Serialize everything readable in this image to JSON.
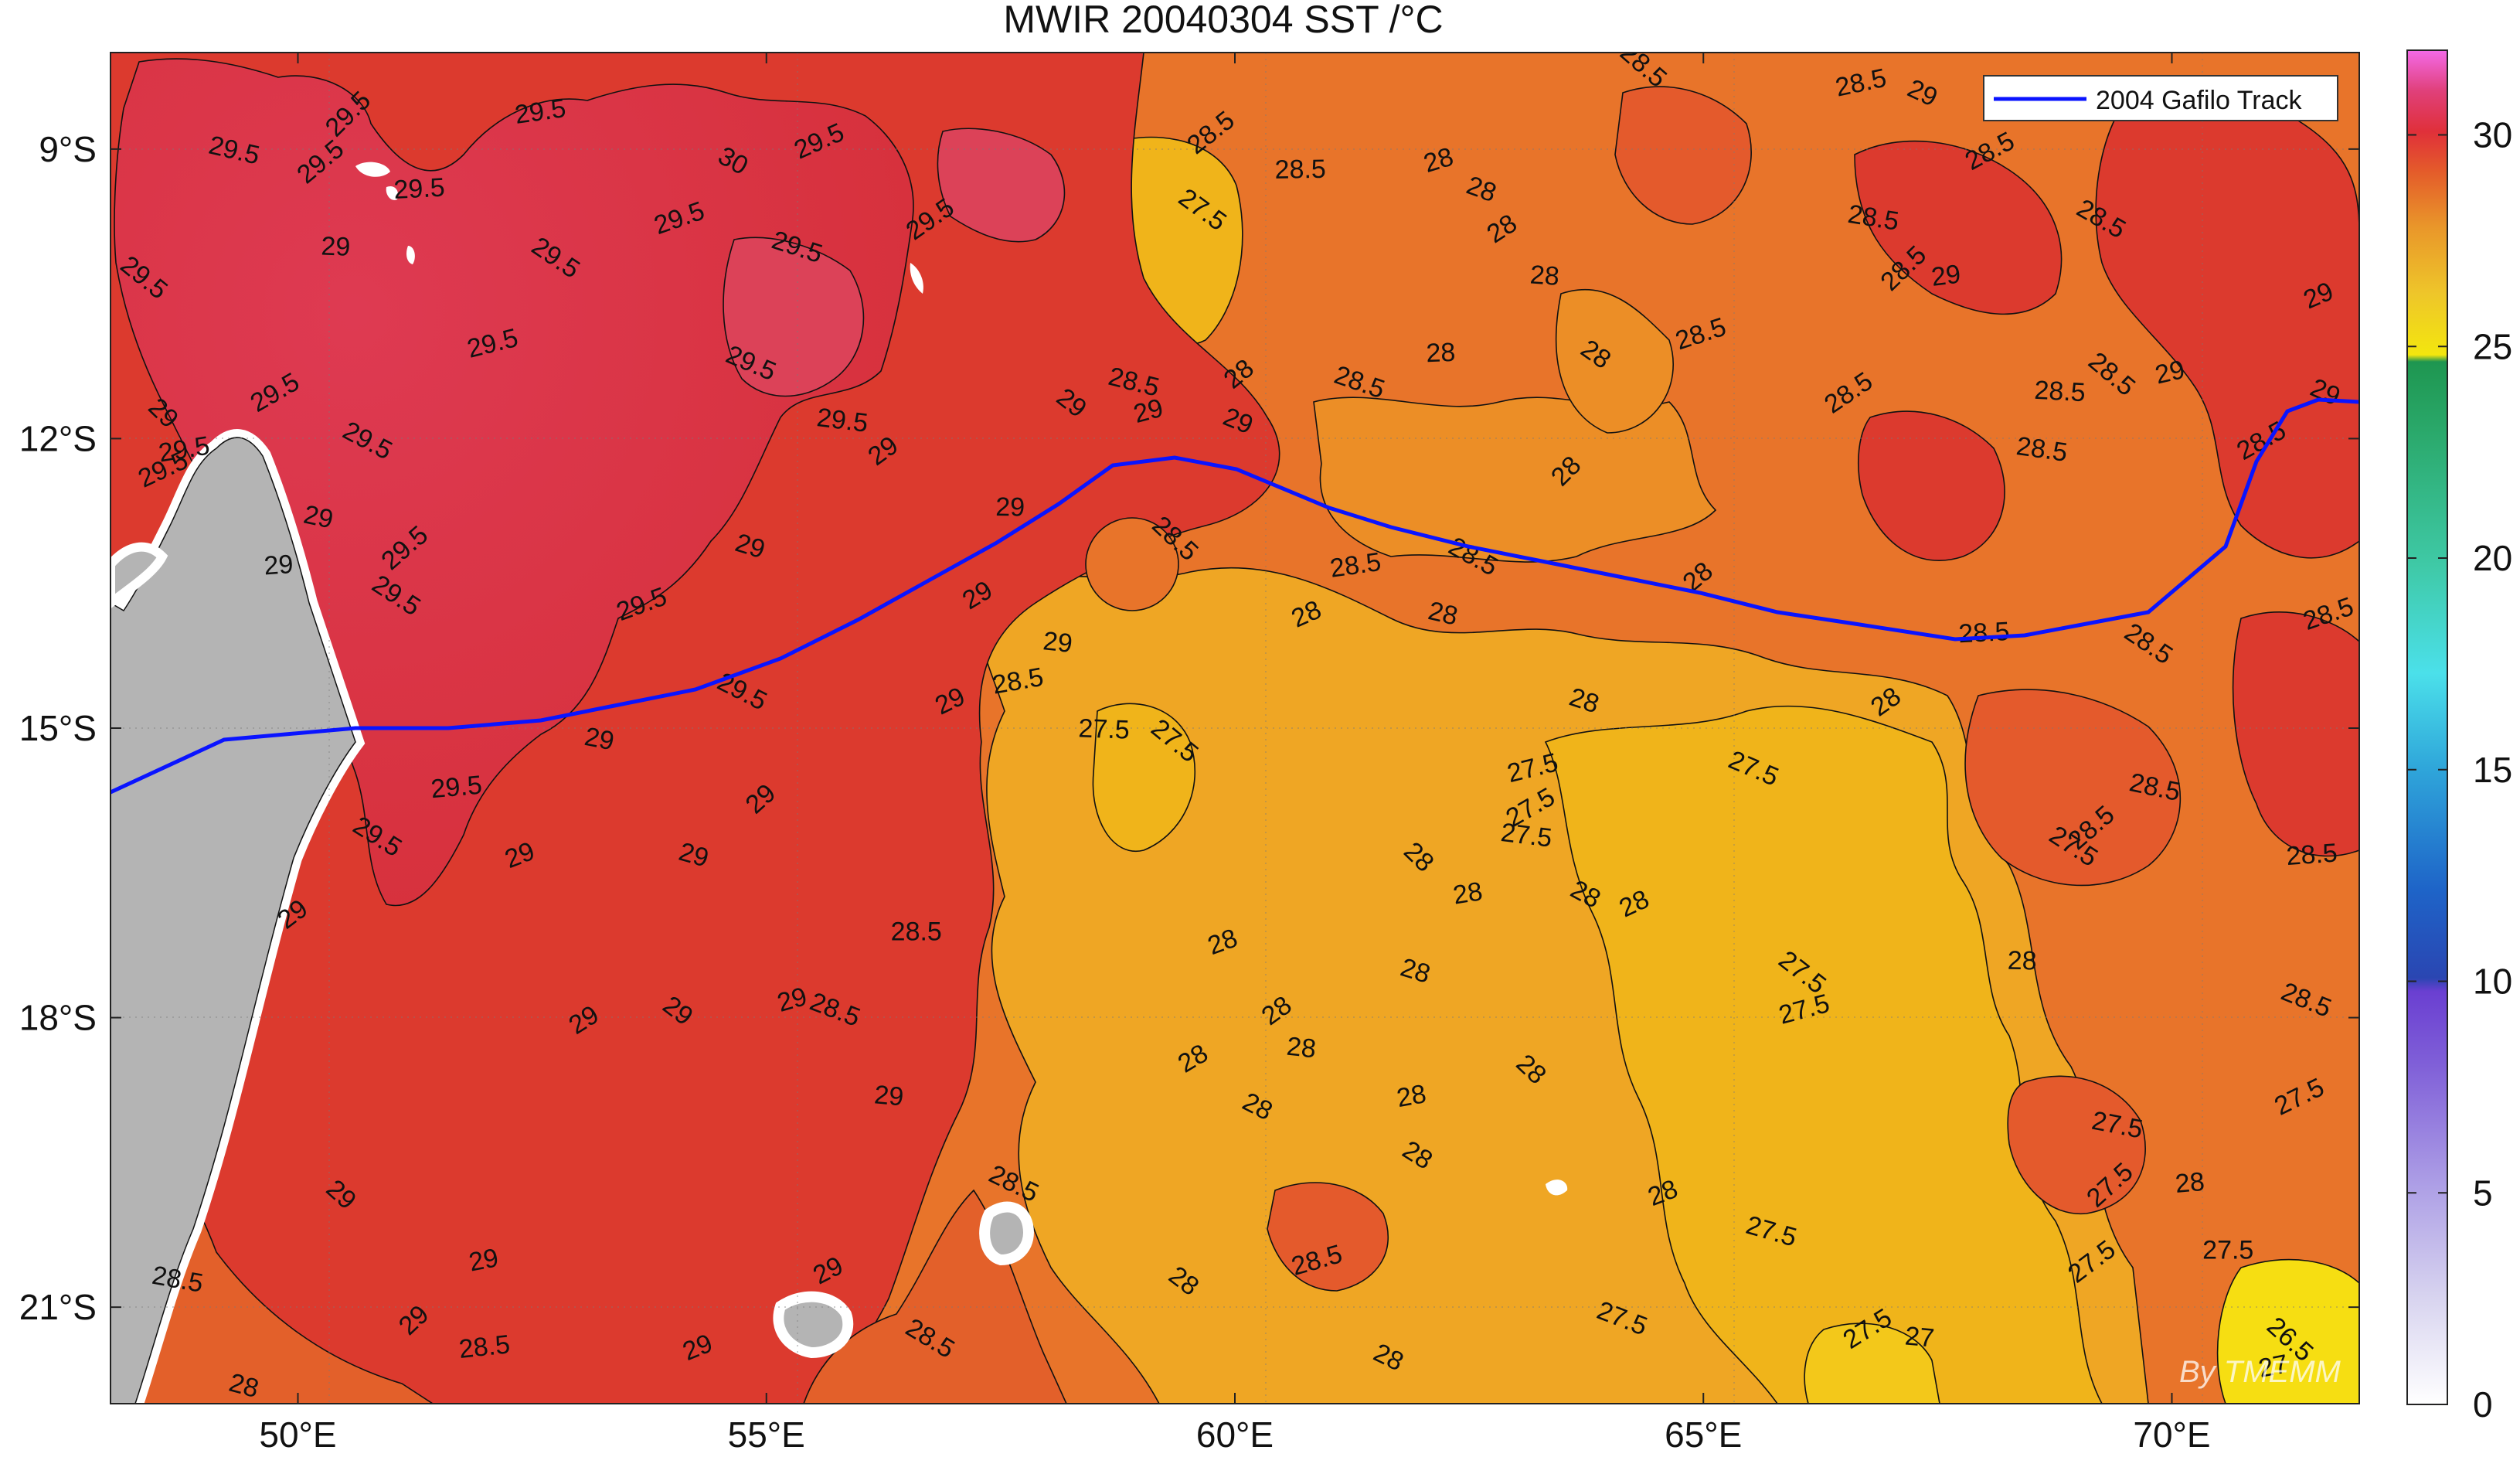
{
  "title": "MWIR 20040304 SST /°C",
  "x_ticks": [
    {
      "lon": 50,
      "label": "50°E"
    },
    {
      "lon": 55,
      "label": "55°E"
    },
    {
      "lon": 60,
      "label": "60°E"
    },
    {
      "lon": 65,
      "label": "65°E"
    },
    {
      "lon": 70,
      "label": "70°E"
    }
  ],
  "y_ticks": [
    {
      "lat": -9,
      "label": "9°S"
    },
    {
      "lat": -12,
      "label": "12°S"
    },
    {
      "lat": -15,
      "label": "15°S"
    },
    {
      "lat": -18,
      "label": "18°S"
    },
    {
      "lat": -21,
      "label": "21°S"
    }
  ],
  "lon_range": [
    48,
    72
  ],
  "lat_range": [
    -22,
    -8
  ],
  "legend": {
    "label": "2004 Gafilo Track",
    "color": "#0a14ff"
  },
  "colorbar": {
    "range": [
      0,
      32
    ],
    "ticks": [
      {
        "value": 0,
        "label": "0"
      },
      {
        "value": 5,
        "label": "5"
      },
      {
        "value": 10,
        "label": "10"
      },
      {
        "value": 15,
        "label": "15"
      },
      {
        "value": 20,
        "label": "20"
      },
      {
        "value": 25,
        "label": "25"
      },
      {
        "value": 30,
        "label": "30"
      }
    ]
  },
  "watermark": "By TMEMM",
  "contour_labels": [
    {
      "text": "29.5",
      "lon": 50.6,
      "lat": -8.7
    },
    {
      "text": "29.5",
      "lon": 52.6,
      "lat": -8.7
    },
    {
      "text": "30",
      "lon": 54.6,
      "lat": -9.2
    },
    {
      "text": "29.5",
      "lon": 55.6,
      "lat": -9.0
    },
    {
      "text": "29.5",
      "lon": 49.3,
      "lat": -9.1
    },
    {
      "text": "29.5",
      "lon": 50.3,
      "lat": -9.2
    },
    {
      "text": "29.5",
      "lon": 51.3,
      "lat": -9.5
    },
    {
      "text": "29.5",
      "lon": 52.7,
      "lat": -10.2
    },
    {
      "text": "29.5",
      "lon": 54.1,
      "lat": -9.8
    },
    {
      "text": "29.5",
      "lon": 55.3,
      "lat": -10.1
    },
    {
      "text": "29.5",
      "lon": 56.8,
      "lat": -9.8
    },
    {
      "text": "29",
      "lon": 50.4,
      "lat": -10.1
    },
    {
      "text": "29.5",
      "lon": 48.3,
      "lat": -10.4
    },
    {
      "text": "29.5",
      "lon": 52.1,
      "lat": -11.1
    },
    {
      "text": "29.5",
      "lon": 54.8,
      "lat": -11.3
    },
    {
      "text": "29.5",
      "lon": 49.8,
      "lat": -11.6
    },
    {
      "text": "29.5",
      "lon": 55.8,
      "lat": -11.9
    },
    {
      "text": "29",
      "lon": 48.5,
      "lat": -11.8
    },
    {
      "text": "29.5",
      "lon": 48.8,
      "lat": -12.2
    },
    {
      "text": "29.5",
      "lon": 50.7,
      "lat": -12.1
    },
    {
      "text": "29.5",
      "lon": 48.6,
      "lat": -12.4
    },
    {
      "text": "29",
      "lon": 50.2,
      "lat": -12.9
    },
    {
      "text": "29.5",
      "lon": 51.2,
      "lat": -13.2
    },
    {
      "text": "29",
      "lon": 49.8,
      "lat": -13.4
    },
    {
      "text": "29.5",
      "lon": 51.0,
      "lat": -13.7
    },
    {
      "text": "29.5",
      "lon": 53.7,
      "lat": -13.8
    },
    {
      "text": "29",
      "lon": 54.8,
      "lat": -13.2
    },
    {
      "text": "29",
      "lon": 56.3,
      "lat": -12.2
    },
    {
      "text": "29",
      "lon": 57.6,
      "lat": -12.8
    },
    {
      "text": "29",
      "lon": 58.2,
      "lat": -11.7
    },
    {
      "text": "29",
      "lon": 59.1,
      "lat": -11.8
    },
    {
      "text": "29",
      "lon": 60.0,
      "lat": -11.9
    },
    {
      "text": "29",
      "lon": 57.3,
      "lat": -13.7
    },
    {
      "text": "29",
      "lon": 58.1,
      "lat": -14.2
    },
    {
      "text": "28.5",
      "lon": 59.3,
      "lat": -13.1
    },
    {
      "text": "28.5",
      "lon": 57.7,
      "lat": -14.6
    },
    {
      "text": "29.5",
      "lon": 54.7,
      "lat": -14.7
    },
    {
      "text": "29",
      "lon": 57.0,
      "lat": -14.8
    },
    {
      "text": "29",
      "lon": 53.2,
      "lat": -15.2
    },
    {
      "text": "29",
      "lon": 55.0,
      "lat": -15.8
    },
    {
      "text": "29.5",
      "lon": 51.7,
      "lat": -15.7
    },
    {
      "text": "29.5",
      "lon": 50.8,
      "lat": -16.2
    },
    {
      "text": "29",
      "lon": 52.4,
      "lat": -16.4
    },
    {
      "text": "29",
      "lon": 54.2,
      "lat": -16.4
    },
    {
      "text": "29",
      "lon": 50.0,
      "lat": -17.0
    },
    {
      "text": "28.5",
      "lon": 56.6,
      "lat": -17.2
    },
    {
      "text": "29",
      "lon": 54.0,
      "lat": -18.0
    },
    {
      "text": "29",
      "lon": 55.3,
      "lat": -17.9
    },
    {
      "text": "28.5",
      "lon": 55.7,
      "lat": -18.0
    },
    {
      "text": "29",
      "lon": 53.1,
      "lat": -18.1
    },
    {
      "text": "29",
      "lon": 56.3,
      "lat": -18.9
    },
    {
      "text": "29",
      "lon": 50.4,
      "lat": -19.9
    },
    {
      "text": "29",
      "lon": 52.0,
      "lat": -20.6
    },
    {
      "text": "28.5",
      "lon": 57.6,
      "lat": -19.8
    },
    {
      "text": "29",
      "lon": 55.7,
      "lat": -20.7
    },
    {
      "text": "28.5",
      "lon": 48.7,
      "lat": -20.8
    },
    {
      "text": "29",
      "lon": 51.3,
      "lat": -21.2
    },
    {
      "text": "28.5",
      "lon": 52.0,
      "lat": -21.5
    },
    {
      "text": "28.5",
      "lon": 56.7,
      "lat": -21.4
    },
    {
      "text": "29",
      "lon": 54.3,
      "lat": -21.5
    },
    {
      "text": "28",
      "lon": 49.4,
      "lat": -21.9
    },
    {
      "text": "28.5",
      "lon": 59.8,
      "lat": -8.9
    },
    {
      "text": "28.5",
      "lon": 60.7,
      "lat": -9.3
    },
    {
      "text": "27.5",
      "lon": 59.6,
      "lat": -9.7
    },
    {
      "text": "28",
      "lon": 62.2,
      "lat": -9.2
    },
    {
      "text": "28",
      "lon": 62.6,
      "lat": -9.5
    },
    {
      "text": "28",
      "lon": 62.9,
      "lat": -9.9
    },
    {
      "text": "28",
      "lon": 63.3,
      "lat": -10.4
    },
    {
      "text": "28.5",
      "lon": 64.3,
      "lat": -8.2
    },
    {
      "text": "28.5",
      "lon": 66.7,
      "lat": -8.4
    },
    {
      "text": "29",
      "lon": 67.3,
      "lat": -8.5
    },
    {
      "text": "28.5",
      "lon": 68.1,
      "lat": -9.1
    },
    {
      "text": "28.5",
      "lon": 66.8,
      "lat": -9.8
    },
    {
      "text": "28.5",
      "lon": 67.2,
      "lat": -10.3
    },
    {
      "text": "29",
      "lon": 67.6,
      "lat": -10.4
    },
    {
      "text": "28.5",
      "lon": 69.2,
      "lat": -9.8
    },
    {
      "text": "29",
      "lon": 71.6,
      "lat": -10.6
    },
    {
      "text": "28.5",
      "lon": 58.9,
      "lat": -11.5
    },
    {
      "text": "28",
      "lon": 60.1,
      "lat": -11.4
    },
    {
      "text": "28",
      "lon": 62.2,
      "lat": -11.2
    },
    {
      "text": "28",
      "lon": 63.8,
      "lat": -11.2
    },
    {
      "text": "28.5",
      "lon": 65.0,
      "lat": -11.0
    },
    {
      "text": "28.5",
      "lon": 61.3,
      "lat": -11.5
    },
    {
      "text": "28.5",
      "lon": 66.6,
      "lat": -11.6
    },
    {
      "text": "28.5",
      "lon": 68.8,
      "lat": -11.6
    },
    {
      "text": "28.5",
      "lon": 69.3,
      "lat": -11.4
    },
    {
      "text": "29",
      "lon": 70.0,
      "lat": -11.4
    },
    {
      "text": "29",
      "lon": 71.6,
      "lat": -11.6
    },
    {
      "text": "28.5",
      "lon": 71.0,
      "lat": -12.1
    },
    {
      "text": "28.5",
      "lon": 68.6,
      "lat": -12.2
    },
    {
      "text": "28",
      "lon": 63.6,
      "lat": -12.4
    },
    {
      "text": "28.5",
      "lon": 61.3,
      "lat": -13.4
    },
    {
      "text": "28.5",
      "lon": 62.5,
      "lat": -13.3
    },
    {
      "text": "28",
      "lon": 60.8,
      "lat": -13.9
    },
    {
      "text": "28",
      "lon": 62.2,
      "lat": -13.9
    },
    {
      "text": "28",
      "lon": 65.0,
      "lat": -13.5
    },
    {
      "text": "28.5",
      "lon": 68.0,
      "lat": -14.1
    },
    {
      "text": "28.5",
      "lon": 69.7,
      "lat": -14.2
    },
    {
      "text": "28.5",
      "lon": 71.7,
      "lat": -13.9
    },
    {
      "text": "28",
      "lon": 63.7,
      "lat": -14.8
    },
    {
      "text": "28",
      "lon": 67.0,
      "lat": -14.8
    },
    {
      "text": "27.5",
      "lon": 58.6,
      "lat": -15.1
    },
    {
      "text": "27.5",
      "lon": 59.3,
      "lat": -15.2
    },
    {
      "text": "27.5",
      "lon": 63.2,
      "lat": -15.5
    },
    {
      "text": "27.5",
      "lon": 65.5,
      "lat": -15.5
    },
    {
      "text": "27.5",
      "lon": 63.2,
      "lat": -15.9
    },
    {
      "text": "27.5",
      "lon": 63.1,
      "lat": -16.2
    },
    {
      "text": "28",
      "lon": 61.9,
      "lat": -16.4
    },
    {
      "text": "28",
      "lon": 62.5,
      "lat": -16.8
    },
    {
      "text": "28",
      "lon": 63.7,
      "lat": -16.8
    },
    {
      "text": "28",
      "lon": 64.3,
      "lat": -16.9
    },
    {
      "text": "28.5",
      "lon": 69.8,
      "lat": -15.7
    },
    {
      "text": "28.5",
      "lon": 69.2,
      "lat": -16.1
    },
    {
      "text": "28.5",
      "lon": 71.5,
      "lat": -16.4
    },
    {
      "text": "27.5",
      "lon": 68.9,
      "lat": -16.3
    },
    {
      "text": "28",
      "lon": 59.9,
      "lat": -17.3
    },
    {
      "text": "28",
      "lon": 61.9,
      "lat": -17.6
    },
    {
      "text": "28",
      "lon": 60.5,
      "lat": -18.0
    },
    {
      "text": "28",
      "lon": 68.4,
      "lat": -17.5
    },
    {
      "text": "27.5",
      "lon": 66.0,
      "lat": -17.6
    },
    {
      "text": "27.5",
      "lon": 66.1,
      "lat": -18.0
    },
    {
      "text": "28.5",
      "lon": 71.4,
      "lat": -17.9
    },
    {
      "text": "28",
      "lon": 59.6,
      "lat": -18.5
    },
    {
      "text": "28",
      "lon": 60.7,
      "lat": -18.4
    },
    {
      "text": "28",
      "lon": 63.1,
      "lat": -18.6
    },
    {
      "text": "28",
      "lon": 61.9,
      "lat": -18.9
    },
    {
      "text": "28",
      "lon": 60.2,
      "lat": -19.0
    },
    {
      "text": "27.5",
      "lon": 71.4,
      "lat": -18.9
    },
    {
      "text": "27.5",
      "lon": 69.4,
      "lat": -19.2
    },
    {
      "text": "27.5",
      "lon": 69.4,
      "lat": -19.8
    },
    {
      "text": "28",
      "lon": 70.2,
      "lat": -19.8
    },
    {
      "text": "28",
      "lon": 61.9,
      "lat": -19.5
    },
    {
      "text": "28",
      "lon": 64.6,
      "lat": -19.9
    },
    {
      "text": "27.5",
      "lon": 65.7,
      "lat": -20.3
    },
    {
      "text": "27.5",
      "lon": 69.2,
      "lat": -20.6
    },
    {
      "text": "27.5",
      "lon": 70.6,
      "lat": -20.5
    },
    {
      "text": "28",
      "lon": 59.4,
      "lat": -20.8
    },
    {
      "text": "28.5",
      "lon": 60.9,
      "lat": -20.6
    },
    {
      "text": "27.5",
      "lon": 64.1,
      "lat": -21.2
    },
    {
      "text": "27.5",
      "lon": 66.8,
      "lat": -21.3
    },
    {
      "text": "27",
      "lon": 67.3,
      "lat": -21.4
    },
    {
      "text": "26.5",
      "lon": 71.2,
      "lat": -21.4
    },
    {
      "text": "27",
      "lon": 71.1,
      "lat": -21.7
    },
    {
      "text": "28",
      "lon": 61.6,
      "lat": -21.6
    }
  ]
}
